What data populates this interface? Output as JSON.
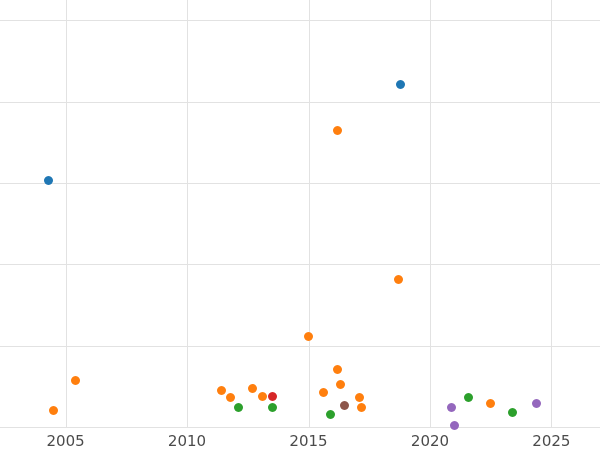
{
  "chart_data": {
    "type": "scatter",
    "title": "",
    "xlabel": "",
    "ylabel": "",
    "xlim": [
      2002.3,
      2027.0
    ],
    "ylim": [
      0,
      105
    ],
    "x_ticks": [
      2005,
      2010,
      2015,
      2020,
      2025
    ],
    "y_gridlines": [
      0,
      20,
      40,
      60,
      80,
      100
    ],
    "grid": true,
    "legend": "none",
    "background": "#ffffff",
    "gridline_color": "#e2e2e2",
    "tick_label_color": "#4a4a4a",
    "series": [
      {
        "name": "series-blue",
        "color": "#1f77b4",
        "points": [
          [
            2004.3,
            60.7
          ],
          [
            2018.8,
            84.2
          ]
        ]
      },
      {
        "name": "series-orange",
        "color": "#ff7f0e",
        "points": [
          [
            2004.5,
            4.0
          ],
          [
            2005.4,
            11.4
          ],
          [
            2011.4,
            9.1
          ],
          [
            2011.8,
            7.2
          ],
          [
            2012.7,
            9.4
          ],
          [
            2013.1,
            7.4
          ],
          [
            2015.0,
            22.2
          ],
          [
            2015.6,
            8.4
          ],
          [
            2016.2,
            73.0
          ],
          [
            2016.2,
            14.1
          ],
          [
            2016.3,
            10.4
          ],
          [
            2017.1,
            7.2
          ],
          [
            2017.2,
            4.9
          ],
          [
            2018.7,
            36.3
          ],
          [
            2022.5,
            5.9
          ]
        ]
      },
      {
        "name": "series-green",
        "color": "#2ca02c",
        "points": [
          [
            2012.1,
            4.7
          ],
          [
            2013.5,
            4.7
          ],
          [
            2015.9,
            3.0
          ],
          [
            2021.6,
            7.2
          ],
          [
            2023.4,
            3.5
          ]
        ]
      },
      {
        "name": "series-red",
        "color": "#d62728",
        "points": [
          [
            2013.5,
            7.4
          ]
        ]
      },
      {
        "name": "series-brown",
        "color": "#8c564b",
        "points": [
          [
            2016.5,
            5.4
          ]
        ]
      },
      {
        "name": "series-purple",
        "color": "#9467bd",
        "points": [
          [
            2020.9,
            4.7
          ],
          [
            2021.0,
            0.5
          ],
          [
            2024.4,
            5.7
          ]
        ]
      }
    ]
  }
}
